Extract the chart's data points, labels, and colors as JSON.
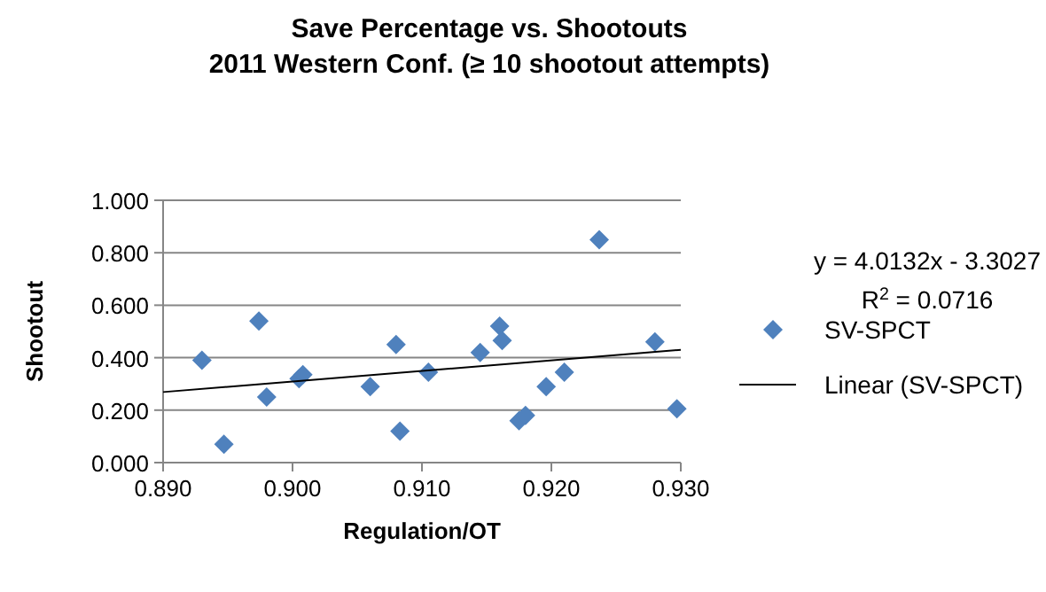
{
  "chart_data": {
    "type": "scatter",
    "title": "Save Percentage vs. Shootouts",
    "subtitle": "2011 Western Conf. (≥ 10 shootout attempts)",
    "xlabel": "Regulation/OT",
    "ylabel": "Shootout",
    "xlim": [
      0.89,
      0.93
    ],
    "xticks": [
      {
        "value": 0.89,
        "label": "0.890"
      },
      {
        "value": 0.9,
        "label": "0.900"
      },
      {
        "value": 0.91,
        "label": "0.910"
      },
      {
        "value": 0.92,
        "label": "0.920"
      },
      {
        "value": 0.93,
        "label": "0.930"
      }
    ],
    "ylim": [
      0,
      1
    ],
    "yticks": [
      {
        "value": 0,
        "label": "0.000"
      },
      {
        "value": 0.2,
        "label": "0.200"
      },
      {
        "value": 0.4,
        "label": "0.400"
      },
      {
        "value": 0.6,
        "label": "0.600"
      },
      {
        "value": 0.8,
        "label": "0.800"
      },
      {
        "value": 1,
        "label": "1.000"
      }
    ],
    "grid": "y",
    "legend": "right",
    "annotations": [
      "y = 4.0132x - 3.3027",
      "R$^{2}$ = 0.0716"
    ],
    "series": [
      {
        "name": "SV-SPCT",
        "color": "#4f81bd",
        "marker": "diamond",
        "x": [
          0.893,
          0.8947,
          0.8974,
          0.898,
          0.9005,
          0.9008,
          0.906,
          0.908,
          0.9083,
          0.9105,
          0.9145,
          0.916,
          0.9162,
          0.9175,
          0.918,
          0.9196,
          0.921,
          0.9237,
          0.928,
          0.9297
        ],
        "values": [
          0.39,
          0.07,
          0.54,
          0.25,
          0.32,
          0.335,
          0.29,
          0.45,
          0.12,
          0.345,
          0.42,
          0.52,
          0.465,
          0.16,
          0.18,
          0.29,
          0.345,
          0.85,
          0.46,
          0.205
        ]
      },
      {
        "name": "Linear (SV-SPCT)",
        "type": "line",
        "color": "#000000",
        "x": [
          0.89,
          0.93
        ],
        "values": [
          0.269,
          0.43
        ]
      }
    ]
  }
}
